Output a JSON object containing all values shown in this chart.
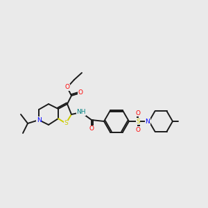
{
  "background_color": "#eaeaea",
  "atom_colors": {
    "O": "#ff0000",
    "N": "#0000ff",
    "S_thio": "#cccc00",
    "S_sulf": "#cccc00",
    "NH": "#008080",
    "C": "#1a1a1a"
  },
  "lw": 1.4,
  "fs": 6.5
}
